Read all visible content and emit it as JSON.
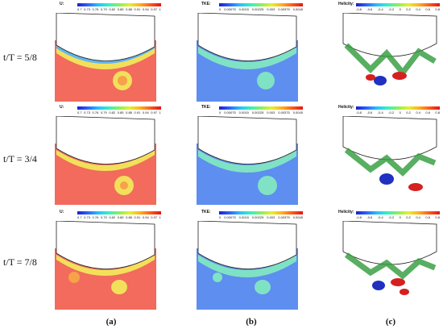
{
  "row_labels": [
    "t/T = 5/8",
    "t/T = 3/4",
    "t/T = 7/8"
  ],
  "column_labels": [
    "(a)",
    "(b)",
    "(c)"
  ],
  "colorbars": [
    {
      "title": "U:",
      "ticks": [
        "0.7",
        "0.73",
        "0.76",
        "0.79",
        "0.82",
        "0.85",
        "0.88",
        "0.91",
        "0.94",
        "0.97",
        "1"
      ]
    },
    {
      "title": "TKE:",
      "ticks": [
        "0",
        "0.00075",
        "0.0015",
        "0.00225",
        "0.003",
        "0.00375",
        "0.0045"
      ]
    },
    {
      "title": "Helicity:",
      "ticks": [
        "-0.8",
        "-0.6",
        "-0.4",
        "-0.2",
        "0",
        "0.2",
        "0.4",
        "0.6",
        "0.8"
      ]
    }
  ],
  "colors": {
    "u_background": "#f26b5c",
    "u_wake": "#f2e05a",
    "tke_background": "#5d8ef0",
    "tke_wake": "#7fe2c4",
    "hull_fill": "#ffffff",
    "hull_stroke": "#222222"
  }
}
